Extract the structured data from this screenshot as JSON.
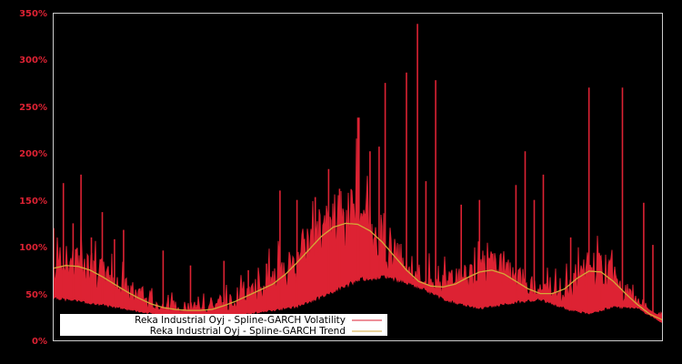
{
  "chart_data": {
    "type": "line",
    "title": "",
    "xlabel": "",
    "ylabel": "",
    "ylim": [
      0,
      350
    ],
    "y_ticks": [
      "0%",
      "50%",
      "100%",
      "150%",
      "200%",
      "250%",
      "300%",
      "350%"
    ],
    "y_tick_values": [
      0,
      50,
      100,
      150,
      200,
      250,
      300,
      350
    ],
    "grid": false,
    "legend_position": "lower left",
    "colors": {
      "background": "#000000",
      "frame": "#cccccc",
      "tick_label": "#dd2233",
      "volatility": "#dd2233",
      "trend": "#d4a838",
      "legend_bg": "#ffffff"
    },
    "series": [
      {
        "name": "Reka Industrial Oyj - Spline-GARCH Volatility",
        "color": "#dd2233",
        "baseline": [
          [
            0,
            48
          ],
          [
            0.04,
            44
          ],
          [
            0.08,
            40
          ],
          [
            0.12,
            35
          ],
          [
            0.18,
            28
          ],
          [
            0.25,
            26
          ],
          [
            0.32,
            30
          ],
          [
            0.4,
            38
          ],
          [
            0.45,
            52
          ],
          [
            0.5,
            68
          ],
          [
            0.55,
            72
          ],
          [
            0.6,
            60
          ],
          [
            0.65,
            44
          ],
          [
            0.7,
            36
          ],
          [
            0.75,
            42
          ],
          [
            0.8,
            46
          ],
          [
            0.85,
            34
          ],
          [
            0.88,
            30
          ],
          [
            0.92,
            38
          ],
          [
            0.96,
            36
          ],
          [
            1.0,
            20
          ]
        ],
        "spikes": [
          [
            0.0,
            120
          ],
          [
            0.016,
            168
          ],
          [
            0.032,
            125
          ],
          [
            0.045,
            177
          ],
          [
            0.062,
            110
          ],
          [
            0.08,
            137
          ],
          [
            0.1,
            108
          ],
          [
            0.115,
            118
          ],
          [
            0.18,
            96
          ],
          [
            0.225,
            80
          ],
          [
            0.28,
            85
          ],
          [
            0.32,
            75
          ],
          [
            0.35,
            82
          ],
          [
            0.37,
            100
          ],
          [
            0.372,
            160
          ],
          [
            0.4,
            150
          ],
          [
            0.43,
            153
          ],
          [
            0.452,
            183
          ],
          [
            0.47,
            162
          ],
          [
            0.5,
            238
          ],
          [
            0.502,
            238
          ],
          [
            0.52,
            202
          ],
          [
            0.535,
            207
          ],
          [
            0.545,
            275
          ],
          [
            0.58,
            286
          ],
          [
            0.598,
            338
          ],
          [
            0.612,
            170
          ],
          [
            0.628,
            278
          ],
          [
            0.67,
            145
          ],
          [
            0.7,
            150
          ],
          [
            0.76,
            166
          ],
          [
            0.775,
            202
          ],
          [
            0.79,
            150
          ],
          [
            0.805,
            177
          ],
          [
            0.85,
            110
          ],
          [
            0.88,
            270
          ],
          [
            0.9,
            85
          ],
          [
            0.935,
            270
          ],
          [
            0.97,
            147
          ],
          [
            0.985,
            102
          ]
        ]
      },
      {
        "name": "Reka Industrial Oyj - Spline-GARCH Trend",
        "color": "#d4a838",
        "points": [
          [
            0,
            77
          ],
          [
            0.02,
            80
          ],
          [
            0.04,
            79
          ],
          [
            0.06,
            75
          ],
          [
            0.08,
            68
          ],
          [
            0.1,
            60
          ],
          [
            0.12,
            52
          ],
          [
            0.14,
            45
          ],
          [
            0.16,
            39
          ],
          [
            0.18,
            35
          ],
          [
            0.2,
            33
          ],
          [
            0.22,
            32
          ],
          [
            0.24,
            32
          ],
          [
            0.26,
            33
          ],
          [
            0.28,
            37
          ],
          [
            0.3,
            42
          ],
          [
            0.32,
            48
          ],
          [
            0.34,
            54
          ],
          [
            0.36,
            60
          ],
          [
            0.38,
            70
          ],
          [
            0.4,
            83
          ],
          [
            0.42,
            97
          ],
          [
            0.44,
            111
          ],
          [
            0.46,
            121
          ],
          [
            0.48,
            125
          ],
          [
            0.5,
            124
          ],
          [
            0.52,
            117
          ],
          [
            0.54,
            105
          ],
          [
            0.56,
            90
          ],
          [
            0.58,
            75
          ],
          [
            0.6,
            63
          ],
          [
            0.62,
            58
          ],
          [
            0.64,
            57
          ],
          [
            0.66,
            60
          ],
          [
            0.68,
            67
          ],
          [
            0.7,
            73
          ],
          [
            0.72,
            75
          ],
          [
            0.74,
            71
          ],
          [
            0.76,
            63
          ],
          [
            0.78,
            55
          ],
          [
            0.8,
            50
          ],
          [
            0.82,
            50
          ],
          [
            0.84,
            55
          ],
          [
            0.86,
            66
          ],
          [
            0.88,
            74
          ],
          [
            0.9,
            73
          ],
          [
            0.92,
            63
          ],
          [
            0.94,
            50
          ],
          [
            0.96,
            38
          ],
          [
            0.98,
            28
          ],
          [
            1.0,
            22
          ]
        ]
      }
    ]
  },
  "legend": {
    "items": [
      {
        "label": "Reka Industrial Oyj - Spline-GARCH Volatility",
        "color": "#dd2233"
      },
      {
        "label": "Reka Industrial Oyj - Spline-GARCH Trend",
        "color": "#d4a838"
      }
    ]
  }
}
